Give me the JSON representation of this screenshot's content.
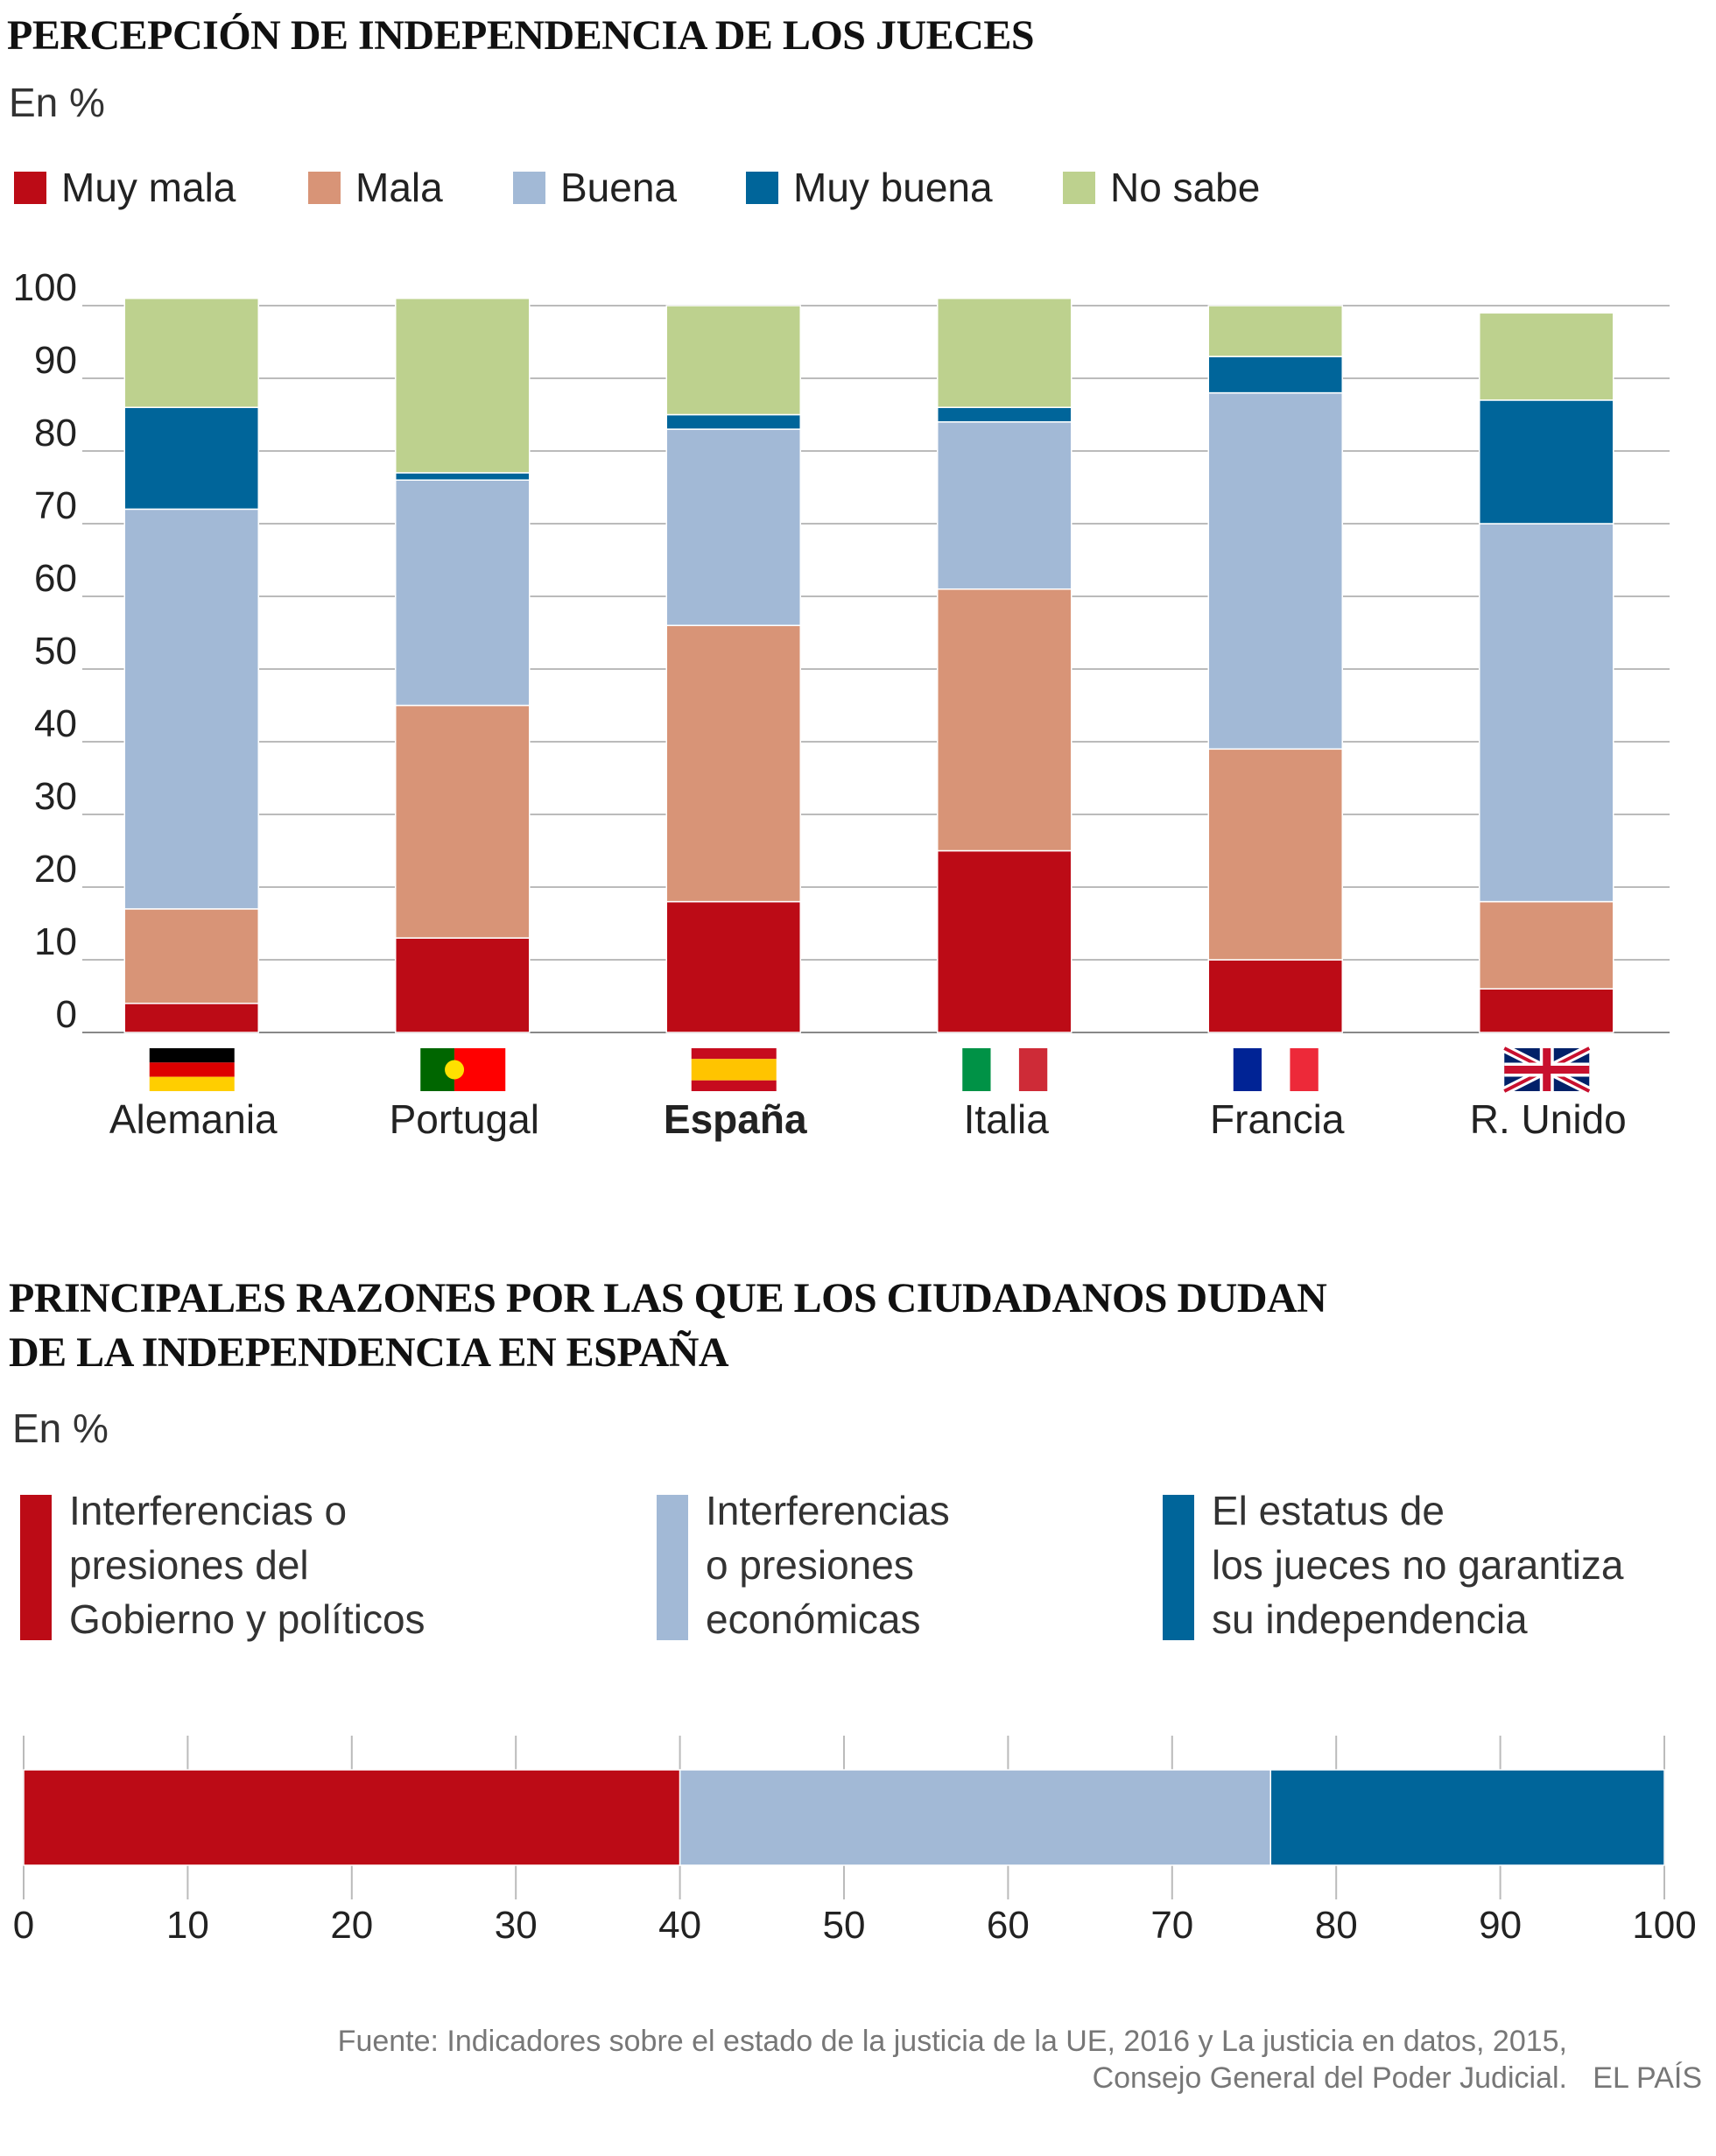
{
  "chart_data": [
    {
      "type": "bar",
      "stacked": true,
      "orientation": "vertical",
      "title": "PERCEPCIÓN DE INDEPENDENCIA DE LOS JUECES",
      "subtitle": "En %",
      "categories": [
        "Alemania",
        "Portugal",
        "España",
        "Italia",
        "Francia",
        "R. Unido"
      ],
      "series": [
        {
          "name": "Muy mala",
          "color": "#bc0b16",
          "values": [
            4,
            13,
            18,
            25,
            10,
            6
          ]
        },
        {
          "name": "Mala",
          "color": "#d89477",
          "values": [
            13,
            32,
            38,
            36,
            29,
            12
          ]
        },
        {
          "name": "Buena",
          "color": "#a2b9d6",
          "values": [
            55,
            31,
            27,
            23,
            49,
            52
          ]
        },
        {
          "name": "Muy buena",
          "color": "#00659a",
          "values": [
            14,
            1,
            2,
            2,
            5,
            17
          ]
        },
        {
          "name": "No sabe",
          "color": "#bdd18e",
          "values": [
            15,
            24,
            15,
            15,
            7,
            12
          ]
        }
      ],
      "ylim": [
        0,
        100
      ],
      "yticks": [
        0,
        10,
        20,
        30,
        40,
        50,
        60,
        70,
        80,
        90,
        100
      ],
      "grid": true
    },
    {
      "type": "bar",
      "stacked": true,
      "orientation": "horizontal",
      "title": "PRINCIPALES RAZONES POR LAS QUE LOS CIUDADANOS DUDAN\nDE LA INDEPENDENCIA EN ESPAÑA",
      "subtitle": "En %",
      "series": [
        {
          "name": "Interferencias o\npresiones del\nGobierno y políticos",
          "color": "#bc0b16",
          "values": [
            40
          ]
        },
        {
          "name": "Interferencias\no presiones\neconómicas",
          "color": "#a2b9d6",
          "values": [
            36
          ]
        },
        {
          "name": "El estatus de\nlos jueces no garantiza\nsu independencia",
          "color": "#00659a",
          "values": [
            24
          ]
        }
      ],
      "xlim": [
        0,
        100
      ],
      "xticks": [
        0,
        10,
        20,
        30,
        40,
        50,
        60,
        70,
        80,
        90,
        100
      ],
      "grid": true
    }
  ],
  "source": "Fuente: Indicadores sobre el estado de la justicia de la UE, 2016 y La justicia en datos, 2015,\nConsejo General del Poder Judicial.",
  "credit": "EL PAÍS"
}
